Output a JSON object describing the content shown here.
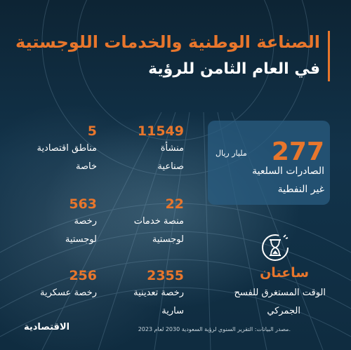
{
  "title": {
    "line1": "الصناعة الوطنية والخدمات اللوجستية",
    "line2": "في العام الثامن للرؤية"
  },
  "highlight": {
    "value": "277",
    "unit": "مليار ريال",
    "label_line1": "الصادرات السلعية",
    "label_line2": "غير النفطية"
  },
  "stats": [
    {
      "value": "11549",
      "line1": "منشأة",
      "line2": "صناعية"
    },
    {
      "value": "5",
      "line1": "مناطق اقتصادية",
      "line2": "خاصة"
    },
    {
      "value": "22",
      "line1": "منصة خدمات",
      "line2": "لوجستية"
    },
    {
      "value": "563",
      "line1": "رخصة",
      "line2": "لوجستية"
    },
    {
      "value": "2355",
      "line1": "رخصة تعدينية",
      "line2": "سارية"
    },
    {
      "value": "256",
      "line1": "رخصة عسكرية",
      "line2": ""
    }
  ],
  "clearance": {
    "icon": "hourglass-icon",
    "value": "ساعتان",
    "line1": "الوقت المستغرق للفسح",
    "line2": "الجمركي"
  },
  "footer": {
    "source": "مصدر البيانات: التقرير السنوي لرؤية السعودية 2030 لعام 2023.",
    "logo": "الاقتصادية"
  },
  "colors": {
    "accent": "#e8762c",
    "background": "#0b2232",
    "card": "#2a5c80"
  }
}
